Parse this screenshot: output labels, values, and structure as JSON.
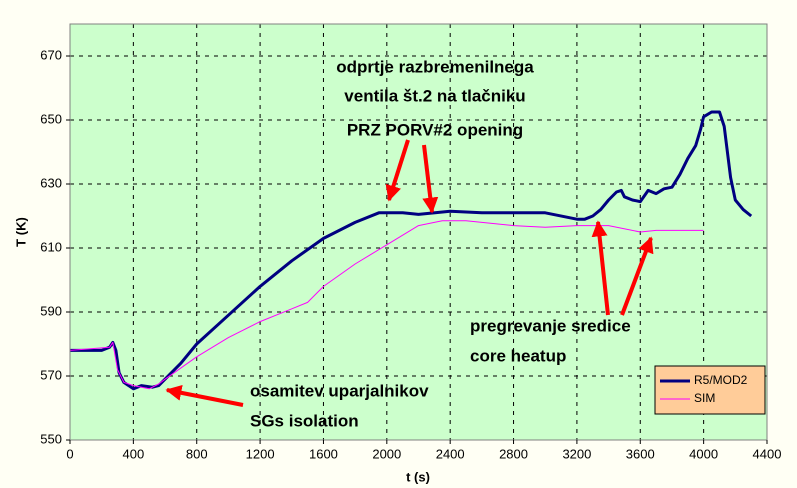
{
  "chart_data": {
    "type": "line",
    "xlabel": "t (s)",
    "ylabel": "T (K)",
    "xlim": [
      0,
      4400
    ],
    "xticks": [
      0,
      400,
      800,
      1200,
      1600,
      2000,
      2400,
      2800,
      3200,
      3600,
      4000,
      4400
    ],
    "ylim": [
      550,
      680
    ],
    "yticks": [
      550,
      570,
      590,
      610,
      630,
      650,
      670
    ],
    "grid": true,
    "legend": "lower right",
    "annotations": [
      "odprtje razbremenilnega",
      "ventila št.2 na tlačniku",
      "PRZ PORV#2 opening",
      "pregrevanje sredice",
      "core heatup",
      "osamitev uparjalnikov",
      "SGs isolation"
    ],
    "series": [
      {
        "name": "R5/MOD2",
        "color": "#000080",
        "x": [
          0,
          200,
          250,
          270,
          290,
          310,
          340,
          400,
          450,
          520,
          560,
          600,
          700,
          800,
          1000,
          1200,
          1400,
          1600,
          1800,
          1950,
          2100,
          2200,
          2400,
          2600,
          2800,
          3000,
          3200,
          3250,
          3300,
          3350,
          3400,
          3450,
          3480,
          3500,
          3550,
          3600,
          3650,
          3700,
          3750,
          3800,
          3850,
          3900,
          3950,
          3980,
          4000,
          4050,
          4100,
          4130,
          4170,
          4200,
          4250,
          4300
        ],
        "values": [
          578,
          578,
          579,
          580.5,
          578,
          571,
          568,
          566,
          567,
          566.5,
          567,
          569,
          574,
          580,
          589,
          598,
          606,
          613,
          618,
          621,
          621,
          620.5,
          621.5,
          621,
          621,
          621,
          619,
          619,
          620,
          622,
          625,
          627.5,
          628,
          626,
          625,
          624.5,
          628,
          627,
          628.5,
          629,
          633,
          638,
          642,
          647,
          651,
          652.5,
          652.5,
          648,
          632,
          625,
          622,
          620
        ]
      },
      {
        "name": "SIM",
        "color": "#ff00ff",
        "x": [
          0,
          250,
          270,
          300,
          340,
          400,
          500,
          560,
          600,
          800,
          1000,
          1200,
          1400,
          1500,
          1600,
          1800,
          2000,
          2200,
          2350,
          2500,
          2800,
          3000,
          3200,
          3400,
          3600,
          3700,
          3800,
          4000
        ],
        "values": [
          578,
          579,
          580.5,
          572,
          568,
          567,
          566,
          567.5,
          569,
          576,
          582,
          587,
          591,
          593,
          598,
          605,
          611,
          617,
          618.5,
          618.5,
          617,
          616.5,
          617,
          617,
          615,
          615.5,
          615.5,
          615.5
        ]
      }
    ]
  }
}
